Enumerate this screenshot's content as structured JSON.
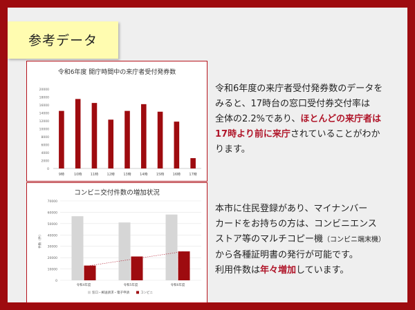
{
  "slide": {
    "title": "参考データ"
  },
  "chart1": {
    "title": "令和6年度 開庁時間中の来庁者受付発券数"
  },
  "chart2": {
    "title": "コンビニ交付件数の増加状況",
    "ylabel": "件数（件）",
    "legend": [
      "窓口・郵送請求・電子申請",
      "コンビニ"
    ]
  },
  "text1": {
    "line1": "令和6年度の来庁者受付発券数のデータを",
    "line2": "みると、17時台の窓口受付券交付率は",
    "line3a": "全体の2.2%であり、",
    "line3b": "ほとんどの来庁者は",
    "line4a": "17時より前に来庁",
    "line4b": "されていることがわか",
    "line5": "ります。"
  },
  "text2": {
    "line1": "本市に住民登録があり、マイナンバー",
    "line2": "カードをお持ちの方は、コンビニエンス",
    "line3a": "ストア等のマルチコピー機",
    "line3b": "（コンビニ端末機）",
    "line4": "から各種証明書の発行が可能です。",
    "line5a": "利用件数は",
    "line5b": "年々増加",
    "line5c": "しています。"
  },
  "chart_data": [
    {
      "type": "bar",
      "title": "令和6年度 開庁時間中の来庁者受付発券数",
      "categories": [
        "9時",
        "10時",
        "11時",
        "12時",
        "13時",
        "14時",
        "15時",
        "16時",
        "17時"
      ],
      "values": [
        14500,
        17500,
        16500,
        12300,
        14500,
        16200,
        14300,
        11800,
        2600
      ],
      "ylim": [
        0,
        20000
      ],
      "yticks": [
        0,
        2000,
        4000,
        6000,
        8000,
        10000,
        12000,
        14000,
        16000,
        18000,
        20000
      ],
      "grid": false,
      "color": "#9e0b0f"
    },
    {
      "type": "bar",
      "title": "コンビニ交付件数の増加状況",
      "categories": [
        "令和4年度",
        "令和5年度",
        "令和6年度"
      ],
      "series": [
        {
          "name": "窓口・郵送請求・電子申請",
          "values": [
            56500,
            51000,
            58000
          ],
          "color": "#d6d6d6"
        },
        {
          "name": "コンビニ",
          "values": [
            13000,
            21000,
            25500
          ],
          "color": "#9e0b0f"
        }
      ],
      "trendline": true,
      "ylabel": "件数（件）",
      "ylim": [
        0,
        70000
      ],
      "yticks": [
        0,
        10000,
        20000,
        30000,
        40000,
        50000,
        60000,
        70000
      ],
      "grid": true,
      "legend": "bottom"
    }
  ]
}
